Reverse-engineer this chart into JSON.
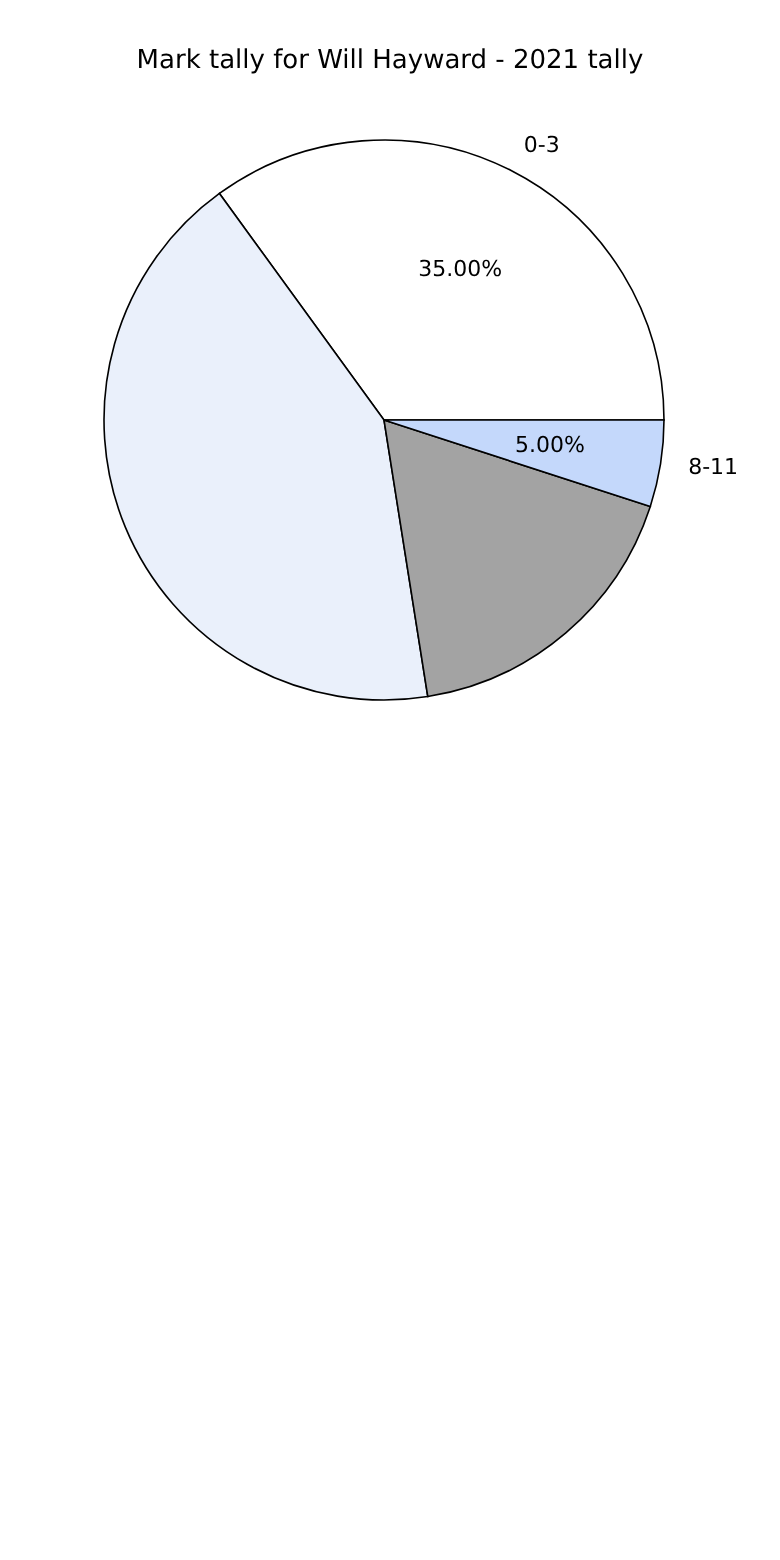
{
  "chart_data": {
    "type": "pie",
    "title": "Mark tally for Will Hayward - 2021 tally",
    "categories": [
      "0-3",
      null,
      null,
      "8-11"
    ],
    "values": [
      35,
      42.5,
      17.5,
      5
    ],
    "colors": [
      "#ffffff",
      "#eaf0fb",
      "#a3a3a3",
      "#c4d8fb"
    ],
    "value_labels": [
      "35.00%",
      null,
      null,
      "5.00%"
    ]
  }
}
